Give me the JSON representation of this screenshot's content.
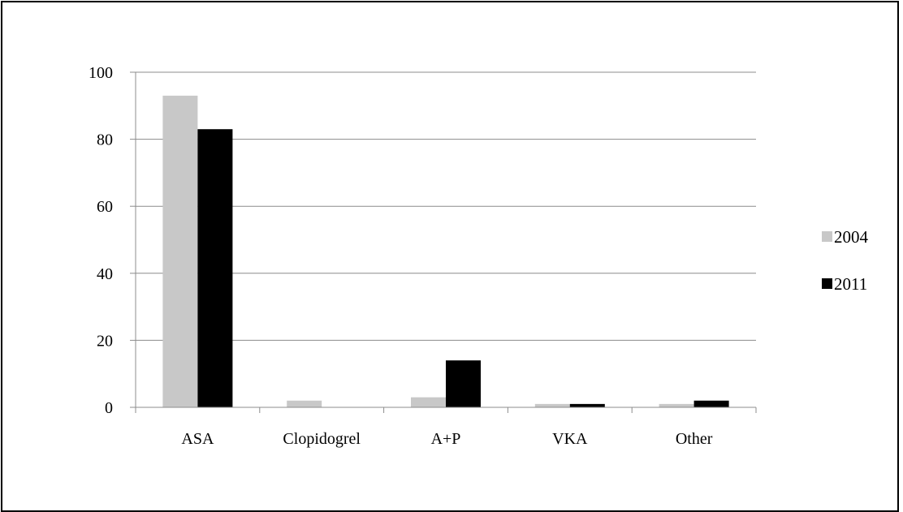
{
  "chart_data": {
    "type": "bar",
    "title": "",
    "xlabel": "",
    "ylabel": "",
    "categories": [
      "ASA",
      "Clopidogrel",
      "A+P",
      "VKA",
      "Other"
    ],
    "series": [
      {
        "name": "2004",
        "values": [
          93,
          2,
          3,
          1,
          1
        ],
        "color": "#c8c8c8"
      },
      {
        "name": "2011",
        "values": [
          83,
          0,
          14,
          1,
          2
        ],
        "color": "#000000"
      }
    ],
    "ylim": [
      0,
      100
    ],
    "yticks": [
      0,
      20,
      40,
      60,
      80,
      100
    ],
    "ytick_labels": [
      "0",
      "20",
      "40",
      "60",
      "80",
      "100"
    ],
    "grid": true,
    "legend_position": "right"
  }
}
